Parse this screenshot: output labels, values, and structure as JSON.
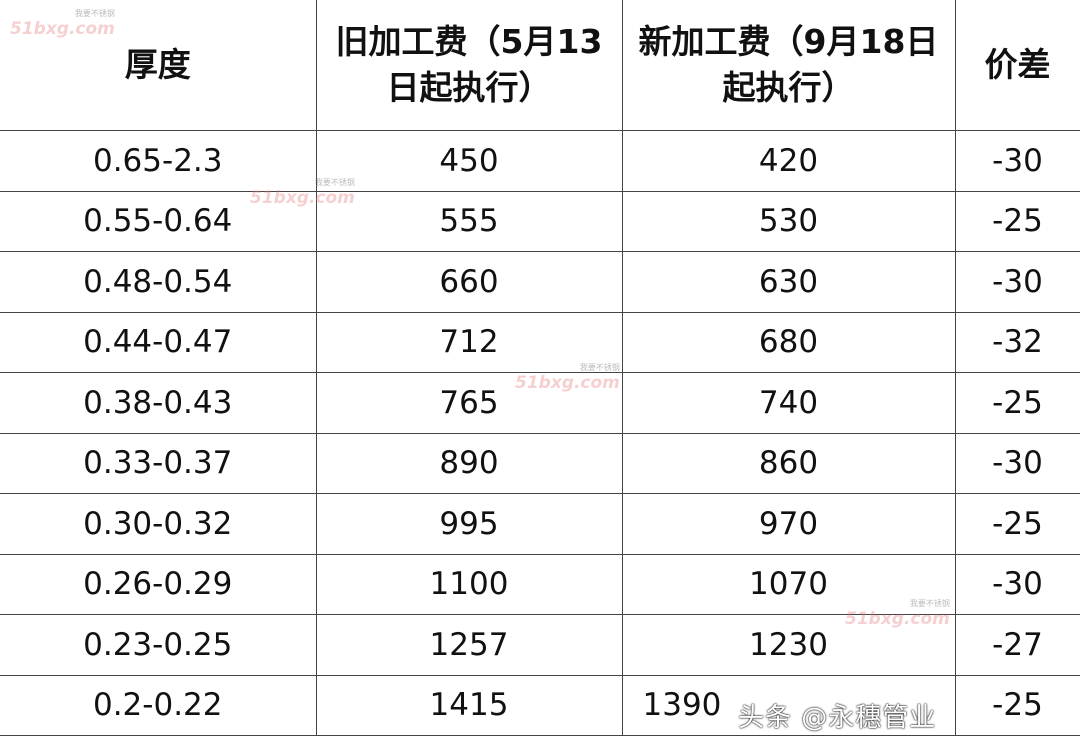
{
  "table": {
    "headers": [
      "厚度",
      "旧加工费（5月13日起执行）",
      "新加工费（9月18日起执行）",
      "价差"
    ],
    "rows": [
      [
        "0.65-2.3",
        "450",
        "420",
        "-30"
      ],
      [
        "0.55-0.64",
        "555",
        "530",
        "-25"
      ],
      [
        "0.48-0.54",
        "660",
        "630",
        "-30"
      ],
      [
        "0.44-0.47",
        "712",
        "680",
        "-32"
      ],
      [
        "0.38-0.43",
        "765",
        "740",
        "-25"
      ],
      [
        "0.33-0.37",
        "890",
        "860",
        "-30"
      ],
      [
        "0.30-0.32",
        "995",
        "970",
        "-25"
      ],
      [
        "0.26-0.29",
        "1100",
        "1070",
        "-30"
      ],
      [
        "0.23-0.25",
        "1257",
        "1230",
        "-27"
      ],
      [
        "0.2-0.22",
        "1415",
        "1390",
        "-25"
      ]
    ]
  },
  "watermark": {
    "logo": "51bxg.com",
    "tagline": "我要不锈钢"
  },
  "credit": "头条 @永穗管业"
}
